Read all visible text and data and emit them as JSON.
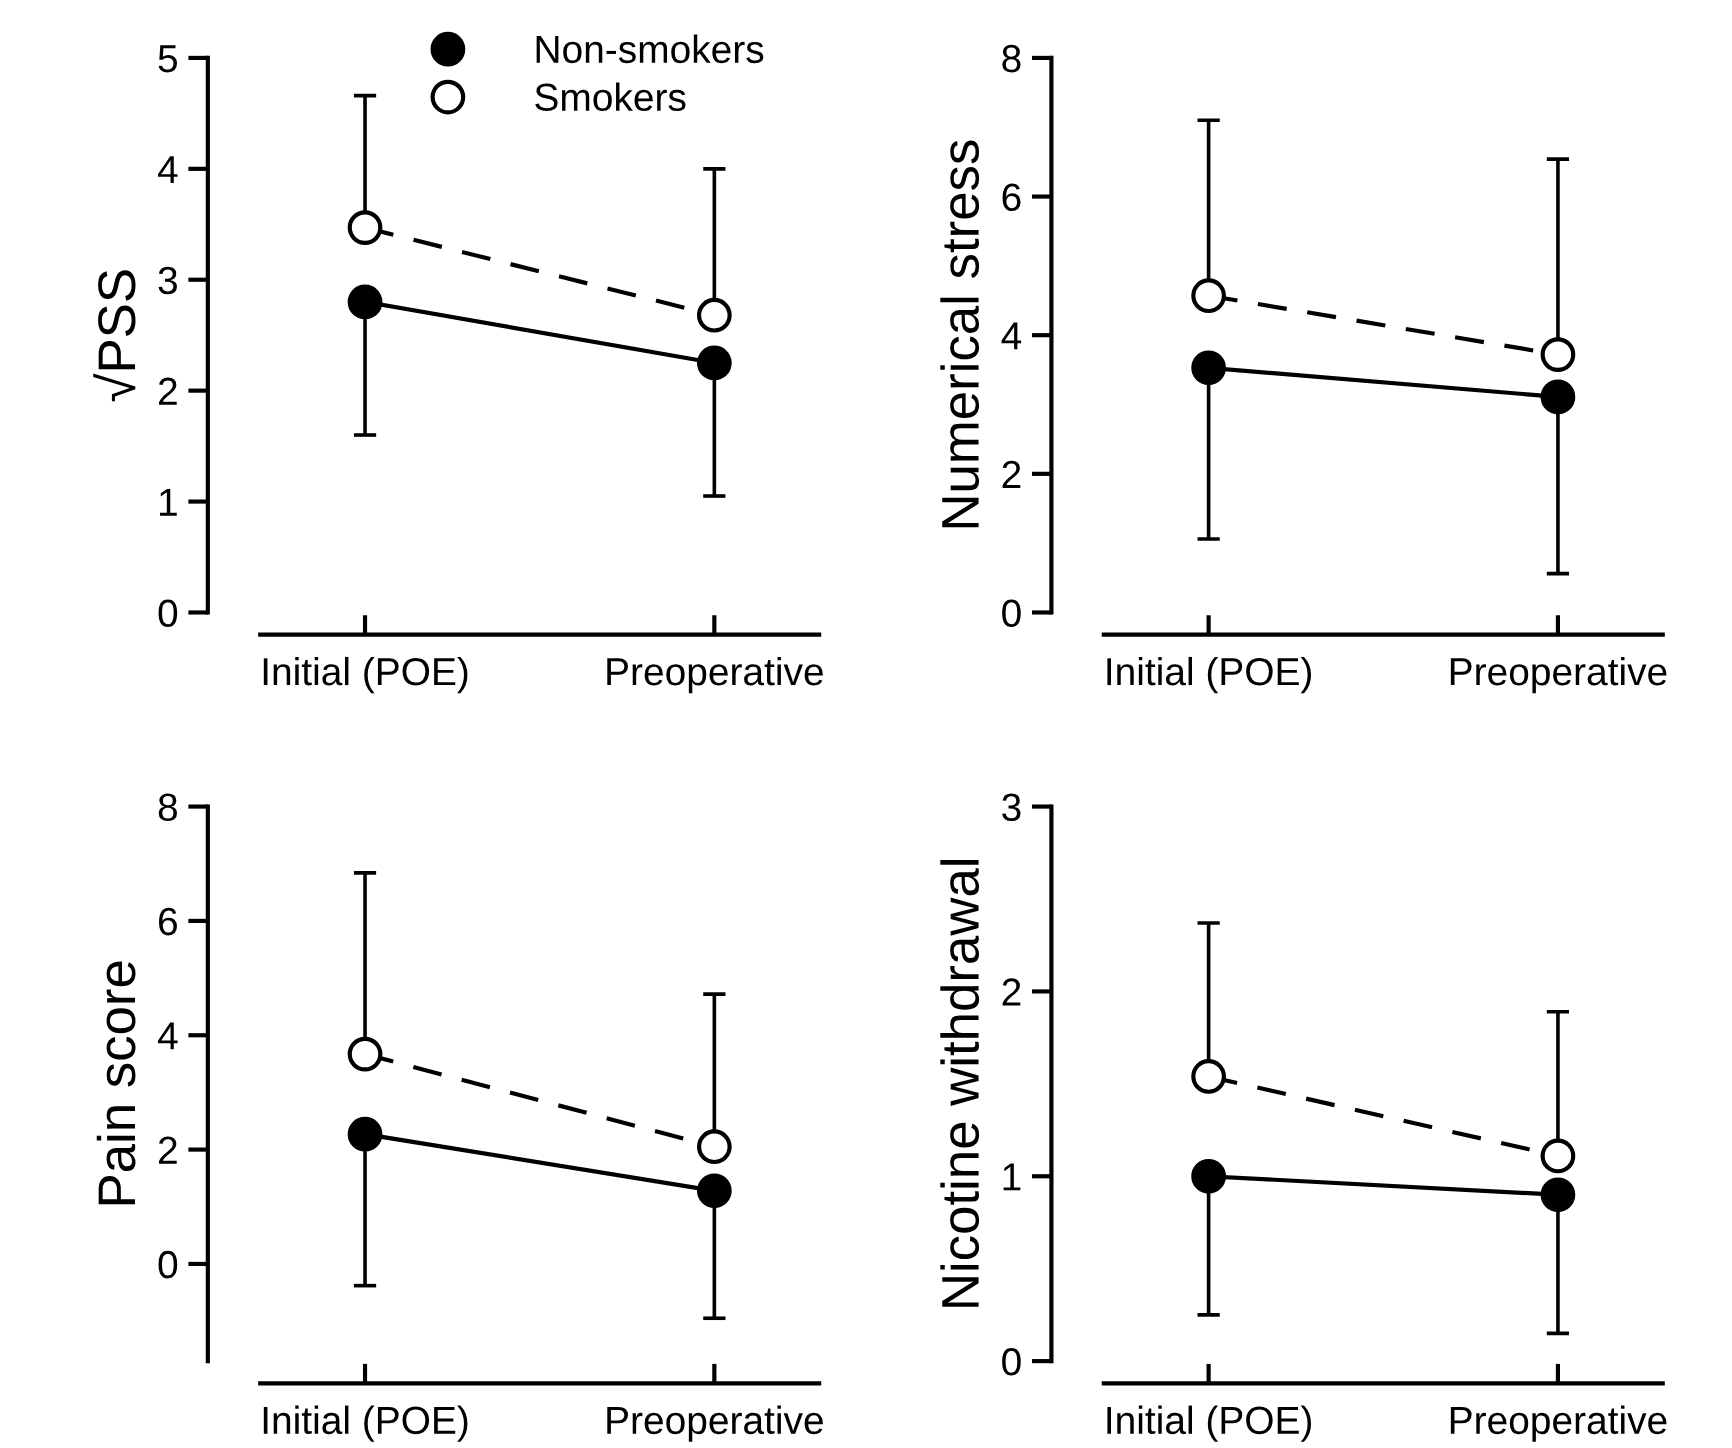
{
  "chart_data": [
    {
      "type": "line",
      "ylabel": "√PSS",
      "categories": [
        "Initial (POE)",
        "Preoperative"
      ],
      "ylim": [
        0,
        5
      ],
      "yticks": [
        0,
        1,
        2,
        3,
        4,
        5
      ],
      "marker": "circle",
      "legend": "top",
      "grid": false,
      "series": [
        {
          "name": "Non-smokers",
          "color": "#000000",
          "line_style": "solid",
          "values": [
            2.8,
            2.25
          ],
          "errors": [
            [
              1.6,
              2.8
            ],
            [
              1.05,
              2.25
            ]
          ]
        },
        {
          "name": "Smokers",
          "color": "#ffffff",
          "line_style": "dashed",
          "values": [
            3.47,
            2.68
          ],
          "errors": [
            [
              3.47,
              4.66
            ],
            [
              2.68,
              4.0
            ]
          ]
        }
      ]
    },
    {
      "type": "line",
      "ylabel": "Numerical stress",
      "categories": [
        "Initial (POE)",
        "Preoperative"
      ],
      "ylim": [
        0,
        8
      ],
      "yticks": [
        0,
        2,
        4,
        6,
        8
      ],
      "marker": "circle",
      "grid": false,
      "series": [
        {
          "color": "#000000",
          "line_style": "solid",
          "values": [
            3.53,
            3.11
          ],
          "errors": [
            [
              1.06,
              3.53
            ],
            [
              0.56,
              3.11
            ]
          ]
        },
        {
          "color": "#ffffff",
          "line_style": "dashed",
          "values": [
            4.57,
            3.72
          ],
          "errors": [
            [
              4.57,
              7.1
            ],
            [
              3.72,
              6.54
            ]
          ]
        }
      ]
    },
    {
      "type": "line",
      "ylabel": "Pain score",
      "categories": [
        "Initial (POE)",
        "Preoperative"
      ],
      "ylim": [
        -1.7,
        8
      ],
      "yticks": [
        0,
        2,
        4,
        6,
        8
      ],
      "marker": "circle",
      "grid": false,
      "series": [
        {
          "color": "#000000",
          "line_style": "solid",
          "values": [
            2.27,
            1.28
          ],
          "errors": [
            [
              -0.38,
              2.27
            ],
            [
              -0.95,
              1.28
            ]
          ]
        },
        {
          "color": "#ffffff",
          "line_style": "dashed",
          "values": [
            3.67,
            2.05
          ],
          "errors": [
            [
              3.67,
              6.84
            ],
            [
              2.05,
              4.72
            ]
          ]
        }
      ]
    },
    {
      "type": "line",
      "ylabel": "Nicotine withdrawal",
      "categories": [
        "Initial (POE)",
        "Preoperative"
      ],
      "ylim": [
        0,
        3
      ],
      "yticks": [
        0,
        1,
        2,
        3
      ],
      "marker": "circle",
      "grid": false,
      "series": [
        {
          "color": "#000000",
          "line_style": "solid",
          "values": [
            1.0,
            0.9
          ],
          "errors": [
            [
              0.25,
              1.0
            ],
            [
              0.15,
              0.9
            ]
          ]
        },
        {
          "color": "#ffffff",
          "line_style": "dashed",
          "values": [
            1.54,
            1.11
          ],
          "errors": [
            [
              1.54,
              2.37
            ],
            [
              1.11,
              1.89
            ]
          ]
        }
      ]
    }
  ]
}
